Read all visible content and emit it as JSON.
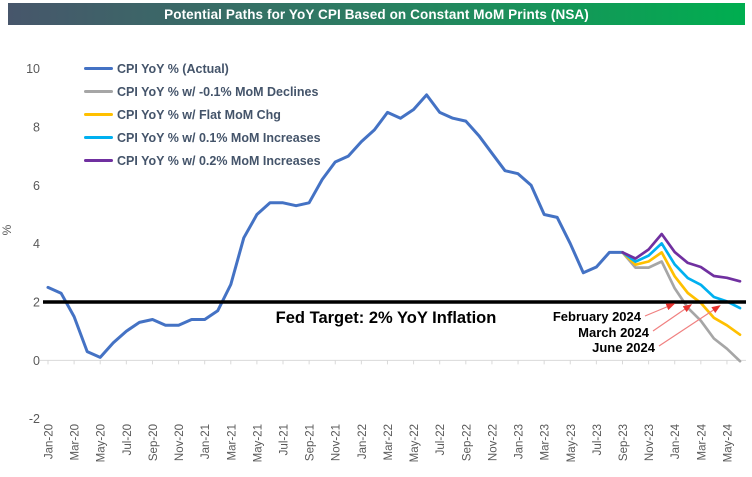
{
  "title": "Potential Paths for YoY CPI Based on Constant MoM Prints (NSA)",
  "title_bar": {
    "gradient_left": "#47566B",
    "gradient_right": "#00AE50",
    "text_color": "#FFFFFF"
  },
  "legend": {
    "items": [
      {
        "label": "CPI YoY % (Actual)",
        "color": "#4472C4"
      },
      {
        "label": "CPI YoY % w/ -0.1% MoM Declines",
        "color": "#A6A6A6"
      },
      {
        "label": "CPI YoY % w/ Flat MoM Chg",
        "color": "#FFC000"
      },
      {
        "label": "CPI YoY % w/ 0.1% MoM Increases",
        "color": "#00B0F0"
      },
      {
        "label": "CPI YoY % w/ 0.2% MoM Increases",
        "color": "#7030A0"
      }
    ]
  },
  "fed_target": {
    "value": 2,
    "label": "Fed Target: 2% YoY Inflation"
  },
  "annotations": [
    {
      "label": "February 2024",
      "series": "CPI YoY % w/ -0.1% MoM Declines",
      "crossing_index": 48.7
    },
    {
      "label": "March 2024",
      "series": "CPI YoY % w/ Flat MoM Chg",
      "crossing_index": 50.0
    },
    {
      "label": "June 2024",
      "series": "CPI YoY % w/ 0.1% MoM Increases",
      "crossing_index": 52.2
    }
  ],
  "chart_data": {
    "type": "line",
    "title": "Potential Paths for YoY CPI Based on Constant MoM Prints (NSA)",
    "xlabel": "",
    "ylabel": "%",
    "ylim": [
      -2,
      10
    ],
    "ytick_step": 2,
    "grid": false,
    "legend_position": "top-left",
    "xtick_every": 2,
    "x": [
      "Jan-20",
      "Feb-20",
      "Mar-20",
      "Apr-20",
      "May-20",
      "Jun-20",
      "Jul-20",
      "Aug-20",
      "Sep-20",
      "Oct-20",
      "Nov-20",
      "Dec-20",
      "Jan-21",
      "Feb-21",
      "Mar-21",
      "Apr-21",
      "May-21",
      "Jun-21",
      "Jul-21",
      "Aug-21",
      "Sep-21",
      "Oct-21",
      "Nov-21",
      "Dec-21",
      "Jan-22",
      "Feb-22",
      "Mar-22",
      "Apr-22",
      "May-22",
      "Jun-22",
      "Jul-22",
      "Aug-22",
      "Sep-22",
      "Oct-22",
      "Nov-22",
      "Dec-22",
      "Jan-23",
      "Feb-23",
      "Mar-23",
      "Apr-23",
      "May-23",
      "Jun-23",
      "Jul-23",
      "Aug-23",
      "Sep-23",
      "Oct-23",
      "Nov-23",
      "Dec-23",
      "Jan-24",
      "Feb-24",
      "Mar-24",
      "Apr-24",
      "May-24",
      "Jun-24"
    ],
    "series": [
      {
        "id": "actual",
        "name": "CPI YoY % (Actual)",
        "color": "#4472C4",
        "width": 3,
        "start_index": 0,
        "values": [
          2.5,
          2.3,
          1.5,
          0.3,
          0.1,
          0.6,
          1.0,
          1.3,
          1.4,
          1.2,
          1.2,
          1.4,
          1.4,
          1.7,
          2.6,
          4.2,
          5.0,
          5.4,
          5.4,
          5.3,
          5.4,
          6.2,
          6.8,
          7.0,
          7.5,
          7.9,
          8.5,
          8.3,
          8.6,
          9.1,
          8.5,
          8.3,
          8.2,
          7.7,
          7.1,
          6.5,
          6.4,
          6.0,
          5.0,
          4.9,
          4.0,
          3.0,
          3.2,
          3.7,
          3.7
        ]
      },
      {
        "id": "mom-decline-0p1",
        "name": "CPI YoY % w/ -0.1% MoM Declines",
        "color": "#A6A6A6",
        "width": 2.7,
        "start_index": 44,
        "values": [
          3.7,
          3.18,
          3.18,
          3.39,
          2.47,
          1.8,
          1.36,
          0.75,
          0.4,
          -0.03
        ]
      },
      {
        "id": "mom-flat",
        "name": "CPI YoY % w/ Flat MoM Chg",
        "color": "#FFC000",
        "width": 2.7,
        "start_index": 44,
        "values": [
          3.7,
          3.28,
          3.39,
          3.7,
          2.88,
          2.31,
          1.97,
          1.46,
          1.2,
          0.88
        ]
      },
      {
        "id": "mom-increase-0p1",
        "name": "CPI YoY % w/ 0.1% MoM Increases",
        "color": "#00B0F0",
        "width": 2.7,
        "start_index": 44,
        "values": [
          3.7,
          3.38,
          3.59,
          4.01,
          3.29,
          2.82,
          2.59,
          2.17,
          2.02,
          1.79
        ]
      },
      {
        "id": "mom-increase-0p2",
        "name": "CPI YoY % w/ 0.2% MoM Increases",
        "color": "#7030A0",
        "width": 2.7,
        "start_index": 44,
        "values": [
          3.7,
          3.49,
          3.8,
          4.33,
          3.71,
          3.34,
          3.2,
          2.89,
          2.83,
          2.71
        ]
      }
    ],
    "fed_target_line": {
      "value": 2,
      "color": "#000000"
    }
  },
  "colors": {
    "axis_text": "#595959",
    "axis_line": "#D9D9D9",
    "arrow_line": "#F08080",
    "arrow_head": "#E8322E"
  }
}
